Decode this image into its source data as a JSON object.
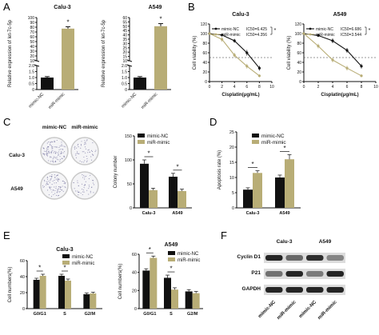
{
  "colors": {
    "nc": "#111111",
    "mimic": "#b8ad76",
    "dish_rim": "#c9c9c9",
    "blot_bg": "#dcdcdc",
    "band": "#1a1a1a"
  },
  "panels": {
    "A": "A",
    "B": "B",
    "C": "C",
    "D": "D",
    "E": "E",
    "F": "F"
  },
  "chart_data": [
    {
      "id": "A1",
      "type": "bar",
      "title": "Calu-3",
      "ylabel": "Relative expression of let-7c-5p",
      "ylim": [
        0,
        100
      ],
      "yticks": [
        0,
        0.5,
        1.0,
        1.5,
        2.0,
        10,
        20,
        30,
        40,
        50,
        60,
        70,
        80,
        90,
        100
      ],
      "ytick_labels": [
        "0",
        "0.5",
        "1.0",
        "1.5",
        "2.0",
        "10",
        "20",
        "30",
        "40",
        "50",
        "60",
        "70",
        "80",
        "90",
        "100"
      ],
      "axis_break": true,
      "categories": [
        "mimic-NC",
        "miR-mimic"
      ],
      "values": [
        1.0,
        77
      ],
      "errors": [
        0.08,
        4
      ],
      "significance": [
        {
          "label": "*",
          "on": "miR-mimic"
        }
      ]
    },
    {
      "id": "A2",
      "type": "bar",
      "title": "A549",
      "ylabel": "Relative expression of let-7c-5p",
      "ylim": [
        0,
        60
      ],
      "yticks": [
        0,
        0.5,
        1.0,
        1.5,
        2.0,
        10,
        15,
        20,
        25,
        30,
        35,
        40,
        45,
        50,
        55,
        60
      ],
      "ytick_labels": [
        "0",
        "0.5",
        "1.0",
        "1.5",
        "2.0",
        "10",
        "15",
        "20",
        "25",
        "30",
        "35",
        "40",
        "45",
        "50",
        "55",
        "60"
      ],
      "axis_break": true,
      "categories": [
        "mimic-NC",
        "miR-mimic"
      ],
      "values": [
        1.0,
        50
      ],
      "errors": [
        0.08,
        3
      ],
      "significance": [
        {
          "label": "*",
          "on": "miR-mimic"
        }
      ]
    },
    {
      "id": "B1",
      "type": "line",
      "title": "Calu-3",
      "xlabel": "Cisplatin(μg/mL)",
      "ylabel": "Cell viability (%)",
      "xlim": [
        0,
        10
      ],
      "ylim": [
        0,
        120
      ],
      "xticks": [
        0,
        2,
        4,
        6,
        8,
        10
      ],
      "yticks": [
        0,
        20,
        40,
        60,
        80,
        100,
        120
      ],
      "reference_line": 50,
      "x": [
        0,
        2,
        4,
        6,
        8
      ],
      "series": [
        {
          "name": "mimic-NC",
          "ic50_label": "IC50=6.425",
          "values": [
            100,
            97,
            85,
            60,
            28
          ],
          "errors": [
            0,
            3,
            4,
            6,
            5
          ]
        },
        {
          "name": "miR-mimic",
          "ic50_label": "IC50=4.356",
          "values": [
            100,
            88,
            55,
            32,
            12
          ],
          "errors": [
            0,
            5,
            5,
            5,
            3
          ]
        }
      ],
      "significance": "*"
    },
    {
      "id": "B2",
      "type": "line",
      "title": "A549",
      "xlabel": "Cisplatin(μg/mL)",
      "ylabel": "Cell viability (%)",
      "xlim": [
        0,
        10
      ],
      "ylim": [
        0,
        120
      ],
      "xticks": [
        0,
        2,
        4,
        6,
        8,
        10
      ],
      "yticks": [
        0,
        20,
        40,
        60,
        80,
        100,
        120
      ],
      "reference_line": 50,
      "x": [
        0,
        2,
        4,
        6,
        8
      ],
      "series": [
        {
          "name": "mimic-NC",
          "ic50_label": "IC50=6.686",
          "values": [
            100,
            96,
            85,
            65,
            32
          ],
          "errors": [
            0,
            3,
            5,
            5,
            5
          ]
        },
        {
          "name": "miR-mimic",
          "ic50_label": "IC50=3.544",
          "values": [
            100,
            74,
            45,
            28,
            12
          ],
          "errors": [
            0,
            5,
            5,
            5,
            3
          ]
        }
      ],
      "significance": "*"
    },
    {
      "id": "C",
      "type": "bar",
      "ylabel": "Colony number",
      "ylim": [
        0,
        150
      ],
      "yticks": [
        0,
        50,
        100,
        150
      ],
      "categories": [
        "Calu-3",
        "A549"
      ],
      "series": [
        {
          "name": "mimic-NC",
          "values": [
            92,
            65
          ],
          "errors": [
            8,
            7
          ]
        },
        {
          "name": "miR-mimic",
          "values": [
            37,
            35
          ],
          "errors": [
            4,
            4
          ]
        }
      ],
      "significance": [
        "*",
        "*"
      ],
      "dish_rows": [
        "Calu-3",
        "A549"
      ],
      "dish_cols": [
        "mimic-NC",
        "miR-mimic"
      ]
    },
    {
      "id": "D",
      "type": "bar",
      "ylabel": "Apoptosis rate (%)",
      "ylim": [
        0,
        25
      ],
      "yticks": [
        0,
        5,
        10,
        15,
        20,
        25
      ],
      "categories": [
        "Calu-3",
        "A549"
      ],
      "series": [
        {
          "name": "mimic-NC",
          "values": [
            6,
            10
          ],
          "errors": [
            0.6,
            0.8
          ]
        },
        {
          "name": "miR-mimic",
          "values": [
            11.5,
            16
          ],
          "errors": [
            0.7,
            1.5
          ]
        }
      ],
      "significance": [
        "*",
        "*"
      ]
    },
    {
      "id": "E1",
      "type": "bar",
      "title": "Calu-3",
      "ylabel": "Cell numbers(%)",
      "ylim": [
        0,
        60
      ],
      "yticks": [
        0,
        20,
        40,
        60
      ],
      "categories": [
        "G0/G1",
        "S",
        "G2/M"
      ],
      "series": [
        {
          "name": "mimic-NC",
          "values": [
            36,
            41,
            18
          ],
          "errors": [
            2,
            2,
            1.5
          ]
        },
        {
          "name": "miR-mimic",
          "values": [
            41,
            35,
            19
          ],
          "errors": [
            2,
            2,
            1.5
          ]
        }
      ],
      "significance": [
        "*",
        "*",
        ""
      ]
    },
    {
      "id": "E2",
      "type": "bar",
      "title": "A549",
      "ylabel": "Cell numbers(%)",
      "ylim": [
        0,
        60
      ],
      "yticks": [
        0,
        20,
        40,
        60
      ],
      "categories": [
        "G0/G1",
        "S",
        "G2/M"
      ],
      "series": [
        {
          "name": "mimic-NC",
          "values": [
            42,
            34,
            19
          ],
          "errors": [
            2,
            3,
            2
          ]
        },
        {
          "name": "miR-mimic",
          "values": [
            56,
            21,
            17
          ],
          "errors": [
            2,
            2,
            2
          ]
        }
      ],
      "significance": [
        "*",
        "*",
        ""
      ]
    }
  ],
  "western_blot": {
    "groups": [
      "Calu-3",
      "A549"
    ],
    "rows": [
      "Cyclin D1",
      "P21",
      "GAPDH"
    ],
    "lanes": [
      "mimic-NC",
      "miR-mimic",
      "mimic-NC",
      "miR-mimic"
    ],
    "band_intensity": [
      [
        0.95,
        0.6,
        0.9,
        0.45
      ],
      [
        0.55,
        0.95,
        0.5,
        0.95
      ],
      [
        0.95,
        0.95,
        0.95,
        0.95
      ]
    ]
  }
}
